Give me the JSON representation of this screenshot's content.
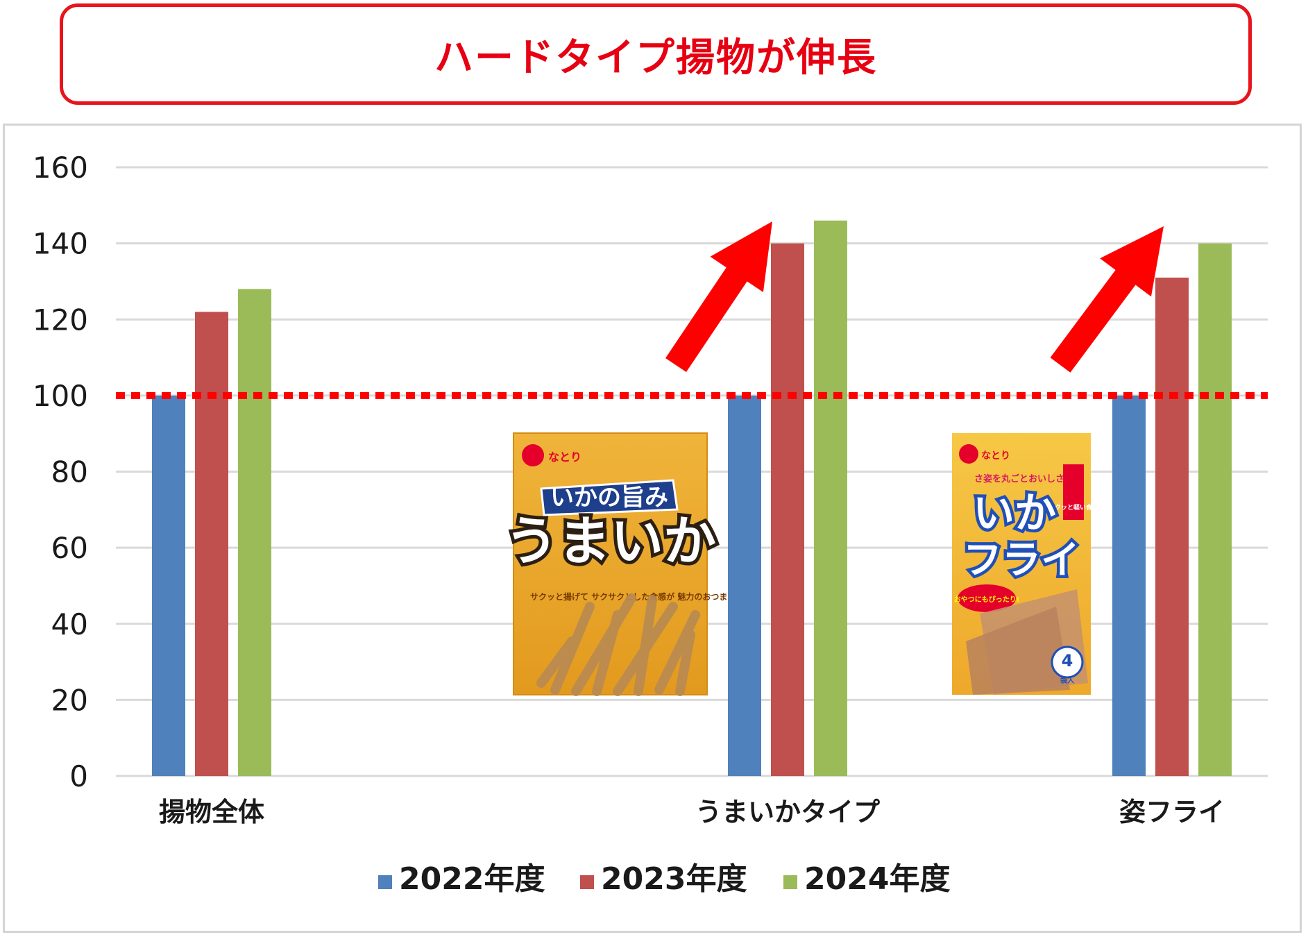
{
  "title": "ハードタイプ揚物が伸長",
  "chart_data": {
    "type": "bar",
    "categories": [
      "揚物全体",
      "うまいかタイプ",
      "姿フライ"
    ],
    "series": [
      {
        "name": "2022年度",
        "color": "#4f81bd",
        "values": [
          100,
          100,
          100
        ]
      },
      {
        "name": "2023年度",
        "color": "#c0504d",
        "values": [
          122,
          140,
          131
        ]
      },
      {
        "name": "2024年度",
        "color": "#9bbb59",
        "values": [
          128,
          146,
          140
        ]
      }
    ],
    "ylim": [
      0,
      160
    ],
    "yticks": [
      0,
      20,
      40,
      60,
      80,
      100,
      120,
      140,
      160
    ],
    "grid": true,
    "legend": "bottom",
    "reference_line": {
      "value": 100,
      "color": "#ff0000",
      "style": "dotted"
    },
    "annotations": {
      "arrows": [
        {
          "category": "うまいかタイプ",
          "color": "#ff0000"
        },
        {
          "category": "姿フライ",
          "color": "#ff0000"
        }
      ]
    }
  },
  "products": [
    {
      "name": "umaika-package",
      "brand": "なとり",
      "banner": "いかの旨み",
      "title": "うまいか",
      "tagline": "サクッと揚げて サクサクとした食感が 魅力のおつまみです。"
    },
    {
      "name": "ikafry-package",
      "brand": "なとり",
      "catch": "さ姿を丸ごとおいしさ!",
      "title_line1": "いか",
      "title_line2": "フライ",
      "side_badge": "サクッと軽い食感",
      "bubble": "おやつにもぴったり!",
      "count_badge_number": "4",
      "count_badge_unit": "袋入"
    }
  ]
}
